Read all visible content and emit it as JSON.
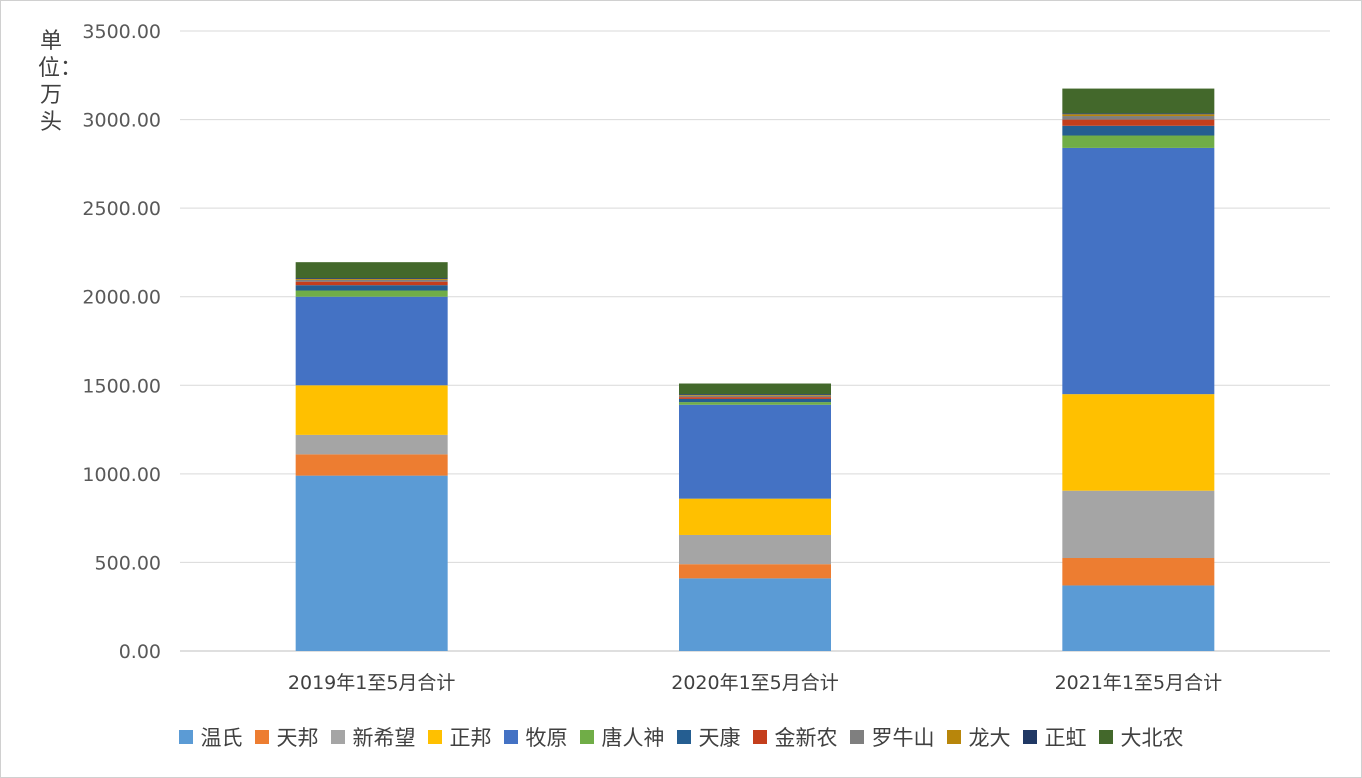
{
  "chart_data": {
    "type": "bar",
    "stacked": true,
    "ylabel": "单位：万头",
    "ylim": [
      0,
      3500
    ],
    "yticks": [
      "0.00",
      "500.00",
      "1000.00",
      "1500.00",
      "2000.00",
      "2500.00",
      "3000.00",
      "3500.00"
    ],
    "grid": true,
    "legend_position": "bottom",
    "categories": [
      "2019年1至5月合计",
      "2020年1至5月合计",
      "2021年1至5月合计"
    ],
    "series": [
      {
        "name": "温氏",
        "color": "#5B9BD5",
        "values": [
          990,
          410,
          370
        ]
      },
      {
        "name": "天邦",
        "color": "#ED7D31",
        "values": [
          120,
          80,
          155
        ]
      },
      {
        "name": "新希望",
        "color": "#A5A5A5",
        "values": [
          110,
          165,
          380
        ]
      },
      {
        "name": "正邦",
        "color": "#FFC000",
        "values": [
          280,
          205,
          545
        ]
      },
      {
        "name": "牧原",
        "color": "#4472C4",
        "values": [
          500,
          530,
          1390
        ]
      },
      {
        "name": "唐人神",
        "color": "#70AD47",
        "values": [
          35,
          15,
          70
        ]
      },
      {
        "name": "天康",
        "color": "#255E91",
        "values": [
          30,
          18,
          55
        ]
      },
      {
        "name": "金新农",
        "color": "#C43E1C",
        "values": [
          20,
          10,
          35
        ]
      },
      {
        "name": "罗牛山",
        "color": "#7F7F7F",
        "values": [
          10,
          8,
          20
        ]
      },
      {
        "name": "龙大",
        "color": "#B8860B",
        "values": [
          5,
          4,
          10
        ]
      },
      {
        "name": "正虹",
        "color": "#203864",
        "values": [
          5,
          5,
          5
        ]
      },
      {
        "name": "大北农",
        "color": "#43682B",
        "values": [
          90,
          60,
          140
        ]
      }
    ]
  }
}
